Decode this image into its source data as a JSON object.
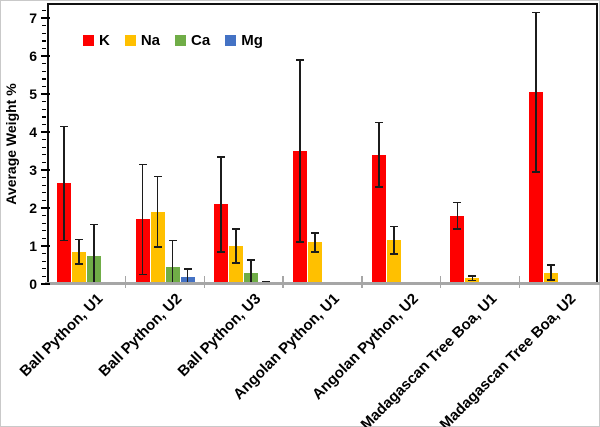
{
  "chart_data": {
    "type": "bar",
    "title": "",
    "xlabel": "",
    "ylabel": "Average Weight %",
    "ylim": [
      0,
      7.4
    ],
    "yticks": [
      0,
      1,
      2,
      3,
      4,
      5,
      6,
      7
    ],
    "minor_tick_step": 0.2,
    "grid": "off",
    "legend_position": "top-left-inside",
    "error_bars": true,
    "categories": [
      "Ball Python, U1",
      "Ball Python, U2",
      "Ball Python, U3",
      "Angolan Python, U1",
      "Angolan Python, U2",
      "Madagascan Tree Boa, U1",
      "Madagascan Tree Boa, U2"
    ],
    "series": [
      {
        "name": "K",
        "color": "#fe0000",
        "values": [
          2.65,
          1.7,
          2.1,
          3.5,
          3.4,
          1.8,
          5.05
        ],
        "errors": [
          1.5,
          1.45,
          1.25,
          2.4,
          0.85,
          0.35,
          2.1
        ]
      },
      {
        "name": "Na",
        "color": "#ffc000",
        "values": [
          0.85,
          1.9,
          1.0,
          1.1,
          1.15,
          0.15,
          0.3
        ],
        "errors": [
          0.32,
          0.93,
          0.45,
          0.25,
          0.36,
          0.06,
          0.2
        ]
      },
      {
        "name": "Ca",
        "color": "#70ad47",
        "values": [
          0.75,
          0.45,
          0.3,
          null,
          null,
          null,
          null
        ],
        "errors": [
          0.82,
          0.7,
          0.33,
          null,
          null,
          null,
          null
        ]
      },
      {
        "name": "Mg",
        "color": "#4472c4",
        "values": [
          null,
          0.18,
          0.02,
          null,
          null,
          null,
          null
        ],
        "errors": [
          null,
          0.22,
          0.03,
          null,
          null,
          null,
          null
        ]
      }
    ]
  }
}
